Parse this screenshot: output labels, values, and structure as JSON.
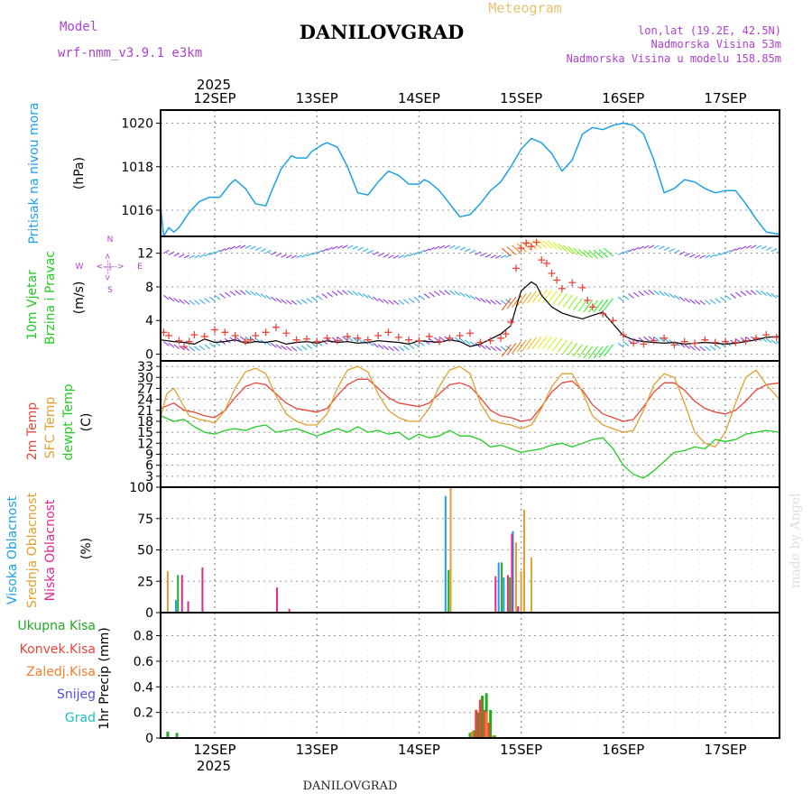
{
  "header": {
    "model_label": "Model",
    "model_name": "wrf-nmm_v3.9.1 e3km",
    "station": "DANILOVGRAD",
    "product": "Meteogram",
    "lonlat": "lon,lat (19.2E, 42.5N)",
    "elevation": "Nadmorska Visina 53m",
    "model_elevation": "Nadmorska Visina u modelu 158.85m",
    "year_top": "2025",
    "year_bottom": "2025",
    "footer_station": "DANILOVGRAD",
    "credit": "made by Angel"
  },
  "colors": {
    "pressure": "#1ea0e6",
    "temp2m": "#e8463c",
    "sfc": "#e0a030",
    "dewpt": "#22cc22",
    "high_cloud": "#1ea0e6",
    "mid_cloud": "#e0a030",
    "low_cloud": "#e0288c",
    "total_precip": "#22aa22",
    "conv_precip": "#e8463c",
    "frozen_precip": "#f08030",
    "snow": "#5050e0",
    "hail": "#20c0c0",
    "grid": "#999999"
  },
  "chart_data": [
    {
      "type": "line",
      "title": "Pritisak na nivou mora",
      "ylabel": "(hPa)",
      "yticks": [
        1016,
        1018,
        1020
      ],
      "ylim": [
        1014.8,
        1020.6
      ],
      "x_unit": "days since 12SEP 00UTC",
      "xlim": [
        -0.53,
        5.53
      ],
      "date_labels": [
        "12SEP",
        "13SEP",
        "14SEP",
        "15SEP",
        "16SEP",
        "17SEP"
      ],
      "series": [
        {
          "name": "Pritisak",
          "color_key": "pressure",
          "x": [
            -0.53,
            -0.5,
            -0.45,
            -0.4,
            -0.35,
            -0.25,
            -0.15,
            -0.05,
            0.05,
            0.15,
            0.2,
            0.3,
            0.4,
            0.5,
            0.55,
            0.65,
            0.75,
            0.8,
            0.9,
            0.95,
            1.05,
            1.1,
            1.2,
            1.3,
            1.4,
            1.5,
            1.6,
            1.7,
            1.8,
            1.9,
            2.0,
            2.05,
            2.1,
            2.2,
            2.3,
            2.4,
            2.5,
            2.6,
            2.7,
            2.8,
            2.9,
            3.0,
            3.1,
            3.2,
            3.3,
            3.4,
            3.5,
            3.6,
            3.7,
            3.8,
            3.9,
            4.0,
            4.1,
            4.2,
            4.3,
            4.4,
            4.5,
            4.6,
            4.7,
            4.8,
            4.9,
            5.0,
            5.1,
            5.2,
            5.3,
            5.4,
            5.53
          ],
          "y": [
            1016.2,
            1014.8,
            1015.2,
            1015.0,
            1015.2,
            1015.9,
            1016.4,
            1016.6,
            1016.6,
            1017.2,
            1017.4,
            1017.0,
            1016.3,
            1016.2,
            1016.8,
            1017.9,
            1018.5,
            1018.4,
            1018.4,
            1018.7,
            1019.0,
            1019.1,
            1018.9,
            1018.0,
            1016.8,
            1016.7,
            1017.3,
            1017.8,
            1017.6,
            1017.2,
            1017.2,
            1017.4,
            1017.3,
            1016.9,
            1016.3,
            1015.7,
            1015.8,
            1016.3,
            1016.9,
            1017.3,
            1018.0,
            1018.8,
            1019.3,
            1019.1,
            1018.6,
            1017.8,
            1018.3,
            1019.5,
            1019.8,
            1019.7,
            1019.9,
            1020.0,
            1019.9,
            1019.5,
            1018.3,
            1016.8,
            1017.0,
            1017.4,
            1017.3,
            1017.0,
            1016.8,
            1016.9,
            1016.9,
            1016.3,
            1015.6,
            1015.0,
            1014.9
          ]
        }
      ]
    },
    {
      "type": "line",
      "title": "10m Vjetar Brzina i Pravac",
      "ylabel": "(m/s)",
      "yticks": [
        0,
        4,
        8,
        12
      ],
      "ylim": [
        -0.8,
        14.0
      ],
      "compass": {
        "n": "N",
        "s": "S",
        "w": "W",
        "e": "E"
      },
      "series": [
        {
          "name": "Brzina (black)",
          "x": [
            -0.53,
            -0.4,
            -0.3,
            -0.2,
            -0.1,
            0.0,
            0.1,
            0.2,
            0.3,
            0.4,
            0.5,
            0.6,
            0.7,
            0.8,
            0.9,
            1.0,
            1.1,
            1.2,
            1.3,
            1.4,
            1.5,
            1.6,
            1.7,
            1.8,
            1.9,
            2.0,
            2.1,
            2.2,
            2.3,
            2.4,
            2.5,
            2.6,
            2.7,
            2.8,
            2.9,
            2.95,
            3.0,
            3.1,
            3.15,
            3.2,
            3.3,
            3.4,
            3.5,
            3.6,
            3.7,
            3.8,
            3.9,
            4.0,
            4.1,
            4.2,
            4.3,
            4.4,
            4.5,
            4.6,
            4.7,
            4.8,
            4.9,
            5.0,
            5.1,
            5.2,
            5.3,
            5.4,
            5.53
          ],
          "y": [
            1.7,
            1.5,
            1.4,
            1.2,
            1.8,
            1.4,
            1.5,
            1.7,
            1.3,
            1.5,
            1.4,
            1.6,
            1.2,
            1.4,
            1.5,
            1.3,
            1.6,
            1.4,
            1.5,
            1.3,
            1.4,
            1.6,
            1.5,
            1.4,
            1.2,
            1.6,
            1.5,
            1.4,
            1.7,
            1.5,
            0.9,
            1.2,
            1.8,
            2.4,
            3.4,
            5.5,
            7.5,
            8.6,
            8.2,
            7.0,
            5.6,
            4.9,
            4.5,
            4.2,
            4.6,
            5.0,
            3.6,
            2.2,
            1.7,
            1.5,
            1.4,
            1.3,
            1.4,
            1.2,
            1.3,
            1.4,
            1.3,
            1.2,
            1.3,
            1.5,
            1.7,
            2.0,
            2.1
          ]
        },
        {
          "name": "Udari (red crosses)",
          "x": [
            -0.5,
            -0.45,
            -0.35,
            -0.3,
            -0.25,
            -0.2,
            -0.1,
            0.0,
            0.1,
            0.2,
            0.3,
            0.35,
            0.4,
            0.5,
            0.6,
            0.7,
            0.8,
            0.9,
            1.0,
            1.1,
            1.2,
            1.3,
            1.4,
            1.5,
            1.6,
            1.7,
            1.8,
            1.9,
            2.0,
            2.1,
            2.2,
            2.3,
            2.4,
            2.5,
            2.6,
            2.7,
            2.8,
            2.85,
            2.9,
            2.95,
            3.0,
            3.05,
            3.1,
            3.15,
            3.2,
            3.25,
            3.3,
            3.35,
            3.4,
            3.5,
            3.6,
            3.65,
            3.7,
            3.8,
            3.9,
            4.0,
            4.1,
            4.2,
            4.3,
            4.4,
            4.5,
            4.6,
            4.7,
            4.8,
            4.9,
            5.0,
            5.1,
            5.2,
            5.3,
            5.4,
            5.5
          ],
          "y": [
            2.6,
            2.2,
            1.6,
            0.9,
            1.5,
            2.3,
            2.1,
            2.9,
            2.6,
            2.2,
            1.5,
            1.7,
            2.2,
            2.6,
            3.2,
            2.5,
            1.7,
            1.8,
            1.5,
            1.9,
            1.6,
            2.1,
            1.9,
            1.7,
            2.2,
            2.6,
            2.0,
            1.7,
            1.6,
            2.1,
            1.5,
            1.9,
            2.2,
            2.5,
            1.4,
            1.6,
            1.9,
            2.4,
            3.8,
            10.2,
            12.6,
            13.2,
            12.8,
            13.3,
            11.2,
            10.8,
            9.6,
            8.8,
            7.8,
            8.5,
            7.9,
            6.4,
            5.6,
            4.8,
            4.0,
            2.3,
            1.3,
            1.2,
            1.6,
            1.9,
            1.1,
            1.5,
            1.3,
            1.7,
            1.4,
            1.5,
            1.4,
            1.6,
            1.9,
            2.3,
            2.0
          ]
        }
      ],
      "barb_rows": [
        {
          "name": "nivo 12 m/s",
          "y": 12
        },
        {
          "name": "nivo 7 m/s",
          "y": 7
        },
        {
          "name": "nivo 1.5 m/s",
          "y": 1.5
        }
      ]
    },
    {
      "type": "line",
      "title": "2m Temp / SFC Temp / dewpt Temp",
      "ylabel": "(C)",
      "yticks": [
        0,
        3,
        6,
        9,
        12,
        15,
        18,
        21,
        24,
        27,
        30,
        33
      ],
      "ylim": [
        0,
        34.5
      ],
      "legend": [
        "2m Temp",
        "SFC Temp",
        "dewpt Temp"
      ],
      "series": [
        {
          "name": "2m Temp",
          "color_key": "temp2m",
          "x": [
            -0.53,
            -0.4,
            -0.3,
            -0.2,
            -0.1,
            0.0,
            0.1,
            0.2,
            0.3,
            0.4,
            0.5,
            0.6,
            0.7,
            0.8,
            0.9,
            1.0,
            1.1,
            1.2,
            1.3,
            1.4,
            1.5,
            1.6,
            1.7,
            1.8,
            1.9,
            2.0,
            2.1,
            2.2,
            2.3,
            2.4,
            2.5,
            2.6,
            2.7,
            2.8,
            2.9,
            3.0,
            3.1,
            3.2,
            3.3,
            3.4,
            3.5,
            3.6,
            3.7,
            3.8,
            3.9,
            4.0,
            4.1,
            4.2,
            4.3,
            4.4,
            4.5,
            4.6,
            4.7,
            4.8,
            4.9,
            5.0,
            5.1,
            5.2,
            5.3,
            5.4,
            5.53
          ],
          "y": [
            21.5,
            23.0,
            21.0,
            20.5,
            19.5,
            19.0,
            21.0,
            24.5,
            27.5,
            28.5,
            28.0,
            25.5,
            23.0,
            21.5,
            21.0,
            20.5,
            21.5,
            25.0,
            28.0,
            29.5,
            29.5,
            27.0,
            24.5,
            23.0,
            22.5,
            22.0,
            23.0,
            25.5,
            28.0,
            28.5,
            27.5,
            24.5,
            21.0,
            19.5,
            19.0,
            18.0,
            18.5,
            22.0,
            26.0,
            28.5,
            29.0,
            26.5,
            22.5,
            20.0,
            19.0,
            18.0,
            18.5,
            22.0,
            26.0,
            28.5,
            28.5,
            26.5,
            23.5,
            21.5,
            20.5,
            20.0,
            21.0,
            23.5,
            26.5,
            28.0,
            28.5
          ]
        },
        {
          "name": "SFC Temp",
          "color_key": "sfc",
          "x": [
            -0.53,
            -0.47,
            -0.4,
            -0.33,
            -0.25,
            -0.15,
            -0.05,
            0.0,
            0.1,
            0.2,
            0.3,
            0.4,
            0.5,
            0.6,
            0.7,
            0.8,
            0.9,
            1.0,
            1.1,
            1.2,
            1.3,
            1.4,
            1.5,
            1.6,
            1.7,
            1.8,
            1.9,
            2.0,
            2.1,
            2.2,
            2.3,
            2.4,
            2.5,
            2.6,
            2.7,
            2.8,
            2.9,
            3.0,
            3.1,
            3.2,
            3.3,
            3.4,
            3.5,
            3.6,
            3.7,
            3.8,
            3.9,
            4.0,
            4.1,
            4.2,
            4.3,
            4.4,
            4.5,
            4.6,
            4.7,
            4.8,
            4.9,
            5.0,
            5.1,
            5.2,
            5.3,
            5.4,
            5.53
          ],
          "y": [
            19.0,
            25.5,
            27.0,
            23.5,
            19.5,
            18.5,
            18.0,
            17.5,
            21.0,
            27.0,
            31.5,
            32.5,
            31.0,
            25.0,
            20.0,
            18.0,
            17.0,
            17.0,
            20.0,
            27.0,
            32.0,
            33.0,
            31.5,
            25.5,
            21.0,
            19.0,
            18.0,
            18.0,
            21.5,
            27.5,
            32.0,
            33.0,
            31.0,
            23.0,
            18.5,
            17.5,
            17.0,
            16.0,
            17.0,
            21.5,
            27.5,
            31.0,
            31.0,
            26.0,
            19.5,
            17.0,
            16.0,
            15.0,
            15.5,
            21.0,
            28.0,
            31.0,
            30.0,
            23.0,
            15.0,
            12.0,
            11.0,
            15.0,
            23.0,
            30.0,
            32.0,
            28.0,
            24.0
          ]
        },
        {
          "name": "dewpt Temp",
          "color_key": "dewpt",
          "x": [
            -0.53,
            -0.4,
            -0.3,
            -0.2,
            -0.1,
            0.0,
            0.1,
            0.2,
            0.3,
            0.4,
            0.5,
            0.6,
            0.7,
            0.8,
            0.9,
            1.0,
            1.1,
            1.2,
            1.3,
            1.4,
            1.5,
            1.6,
            1.7,
            1.8,
            1.9,
            2.0,
            2.1,
            2.2,
            2.3,
            2.4,
            2.5,
            2.6,
            2.7,
            2.8,
            2.9,
            3.0,
            3.1,
            3.2,
            3.3,
            3.4,
            3.5,
            3.6,
            3.7,
            3.8,
            3.9,
            4.0,
            4.1,
            4.2,
            4.3,
            4.4,
            4.5,
            4.6,
            4.7,
            4.8,
            4.9,
            5.0,
            5.1,
            5.2,
            5.3,
            5.4,
            5.53
          ],
          "y": [
            19.5,
            18.0,
            18.5,
            16.5,
            15.0,
            14.5,
            15.5,
            16.0,
            15.5,
            16.5,
            17.0,
            15.0,
            15.5,
            16.0,
            15.0,
            14.0,
            15.0,
            16.0,
            15.0,
            16.5,
            15.0,
            15.5,
            14.5,
            15.0,
            13.0,
            14.5,
            13.5,
            14.0,
            15.5,
            14.0,
            14.0,
            13.0,
            11.0,
            11.5,
            10.5,
            9.5,
            10.0,
            10.5,
            11.5,
            12.0,
            11.0,
            12.0,
            13.0,
            13.5,
            10.5,
            6.0,
            3.5,
            2.5,
            4.5,
            7.0,
            9.5,
            10.0,
            11.0,
            10.5,
            13.0,
            12.5,
            13.0,
            14.5,
            15.0,
            15.5,
            15.0
          ]
        }
      ]
    },
    {
      "type": "bar",
      "title": "Visoka / Srednja / Niska Oblacnost",
      "ylabel": "(%)",
      "yticks": [
        0,
        25,
        50,
        75,
        100
      ],
      "ylim": [
        0,
        100
      ],
      "legend": [
        "Visoka Oblacnost",
        "Srednja Oblacnost",
        "Niska Oblacnost"
      ],
      "series": [
        {
          "name": "Visoka Oblacnost",
          "color_key": "high_cloud",
          "x": [
            -0.38,
            2.26,
            2.78,
            2.83,
            2.92
          ],
          "values": [
            10,
            93,
            40,
            28,
            65
          ]
        },
        {
          "name": "Srednja Oblacnost",
          "color_key": "mid_cloud",
          "x": [
            -0.46,
            2.31,
            2.95,
            3.0,
            3.03,
            3.1
          ],
          "values": [
            33,
            100,
            56,
            33,
            82,
            44
          ]
        },
        {
          "name": "Niska Oblacnost",
          "color_key": "low_cloud",
          "x": [
            -0.32,
            -0.26,
            -0.12,
            0.61,
            0.73,
            2.75,
            2.87,
            2.91,
            2.97
          ],
          "values": [
            30,
            9,
            36,
            20,
            3,
            29,
            30,
            63,
            5
          ]
        },
        {
          "name": "Ukupna (green)",
          "color_key": "total_precip",
          "x": [
            -0.36,
            2.29,
            2.81,
            2.89
          ],
          "values": [
            30,
            34,
            40,
            28
          ]
        }
      ]
    },
    {
      "type": "bar",
      "title": "1hr Precip",
      "ylabel": "1hr Precip (mm)",
      "yticks": [
        0,
        0.2,
        0.4,
        0.6,
        0.8
      ],
      "ylim": [
        0,
        0.98
      ],
      "legend": [
        "Ukupna Kisa",
        "Konvek.Kisa",
        "Zaledj.Kisa",
        "Snijeg",
        "Grad"
      ],
      "series": [
        {
          "name": "Ukupna Kisa",
          "color_key": "total_precip",
          "x": [
            -0.46,
            -0.37,
            2.5,
            2.54,
            2.58,
            2.62,
            2.66,
            2.7,
            2.74
          ],
          "values": [
            0.05,
            0.04,
            0.04,
            0.06,
            0.2,
            0.33,
            0.35,
            0.22,
            0.02
          ]
        },
        {
          "name": "Konvek.Kisa",
          "color_key": "conv_precip",
          "x": [
            2.56,
            2.6,
            2.64,
            2.68
          ],
          "values": [
            0.22,
            0.3,
            0.22,
            0.12
          ]
        },
        {
          "name": "Zaledj.Kisa",
          "color_key": "frozen_precip",
          "x": [
            2.52,
            2.66,
            2.72
          ],
          "values": [
            0.05,
            0.2,
            0.02
          ]
        }
      ]
    }
  ]
}
